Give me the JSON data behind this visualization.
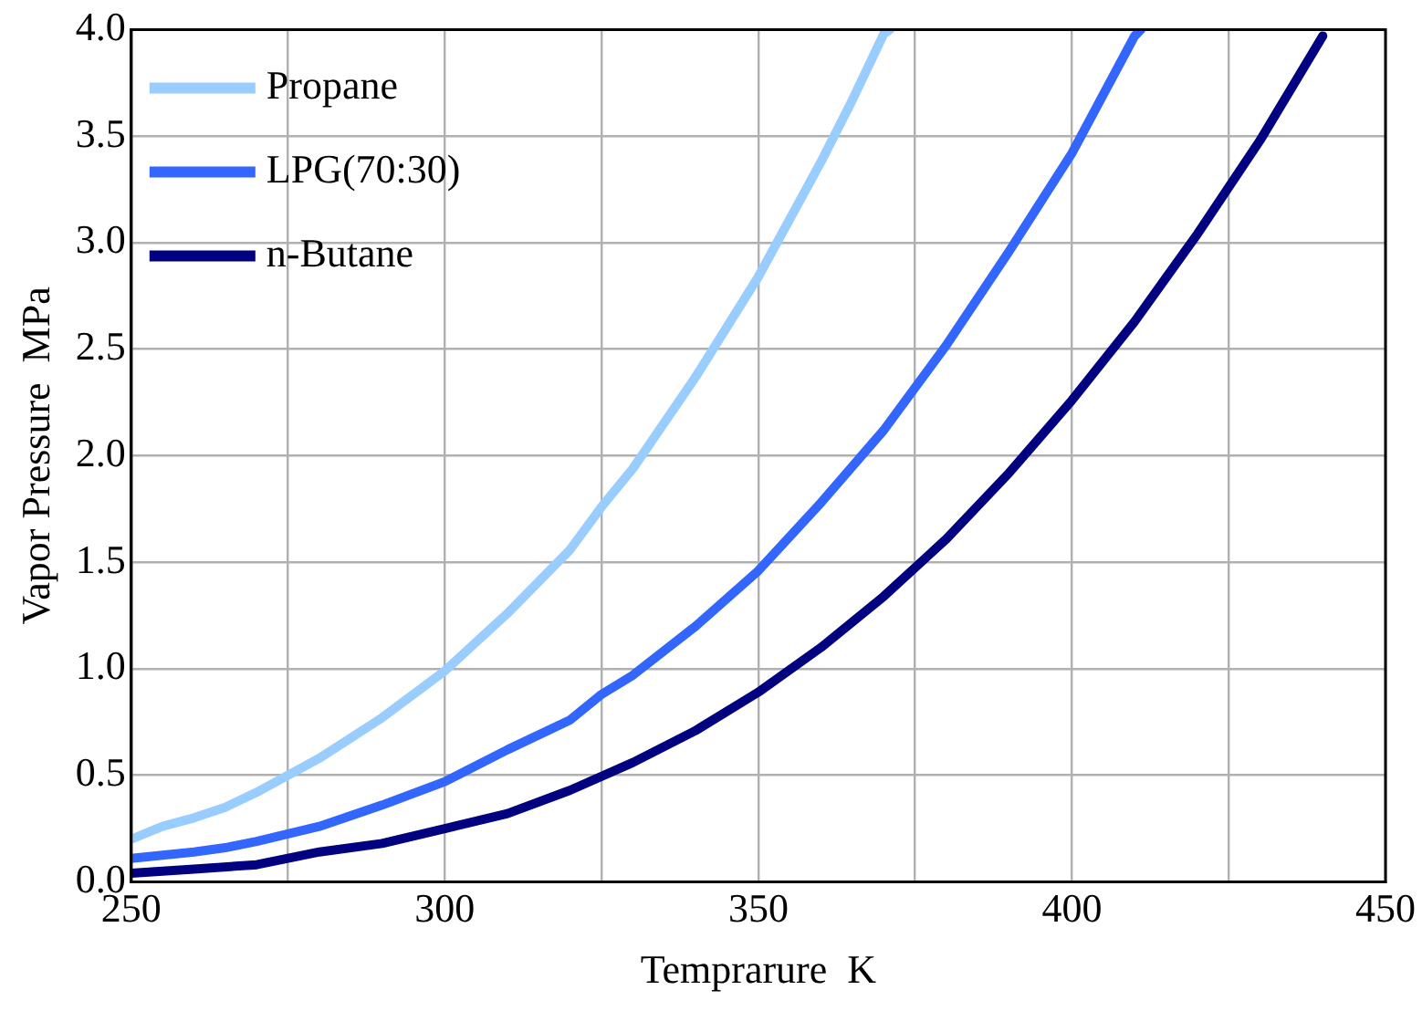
{
  "chart_data": {
    "type": "line",
    "xlabel": "Temprarure  K",
    "ylabel": "Vapor Pressure  MPa",
    "xlim": [
      250,
      450
    ],
    "xticks": [
      250,
      {
        "value": 275,
        "label": null
      },
      300,
      {
        "value": 325,
        "label": null
      },
      350,
      {
        "value": 375,
        "label": null
      },
      400,
      {
        "value": 425,
        "label": null
      },
      450
    ],
    "ylim": [
      0,
      4
    ],
    "yticks": [
      {
        "value": 0,
        "label": "0.0"
      },
      {
        "value": 0.5,
        "label": "0.5"
      },
      {
        "value": 1,
        "label": "1.0"
      },
      {
        "value": 1.5,
        "label": "1.5"
      },
      {
        "value": 2,
        "label": "2.0"
      },
      {
        "value": 2.5,
        "label": "2.5"
      },
      {
        "value": 3,
        "label": "3.0"
      },
      {
        "value": 3.5,
        "label": "3.5"
      },
      {
        "value": 4,
        "label": "4.0"
      }
    ],
    "grid": true,
    "legend": "top left",
    "marker": "none",
    "line_style": "solid",
    "series": [
      {
        "name": "Propane",
        "color": "#99ccff",
        "x": [
          250,
          255,
          260,
          265,
          270,
          275,
          280,
          290,
          300,
          310,
          320,
          325,
          330,
          340,
          350,
          360,
          365,
          370,
          371
        ],
        "values": [
          0.2,
          0.26,
          0.3,
          0.35,
          0.42,
          0.5,
          0.58,
          0.77,
          0.99,
          1.26,
          1.56,
          1.76,
          1.94,
          2.37,
          2.84,
          3.38,
          3.67,
          3.98,
          4.0
        ]
      },
      {
        "name": "LPG(70:30)",
        "color": "#3366ff",
        "x": [
          250,
          260,
          265,
          270,
          280,
          290,
          300,
          310,
          320,
          325,
          330,
          340,
          350,
          360,
          370,
          380,
          390,
          400,
          410,
          411
        ],
        "values": [
          0.11,
          0.14,
          0.16,
          0.19,
          0.26,
          0.36,
          0.47,
          0.62,
          0.76,
          0.88,
          0.97,
          1.2,
          1.46,
          1.78,
          2.12,
          2.52,
          2.96,
          3.42,
          3.97,
          4.0
        ]
      },
      {
        "name": "n-Butane",
        "color": "#000080",
        "x": [
          250,
          260,
          270,
          280,
          290,
          300,
          310,
          320,
          330,
          340,
          350,
          360,
          370,
          380,
          390,
          400,
          410,
          420,
          430,
          440
        ],
        "values": [
          0.04,
          0.06,
          0.08,
          0.14,
          0.18,
          0.25,
          0.32,
          0.43,
          0.56,
          0.71,
          0.89,
          1.1,
          1.34,
          1.61,
          1.92,
          2.26,
          2.63,
          3.04,
          3.48,
          3.97
        ]
      }
    ]
  }
}
